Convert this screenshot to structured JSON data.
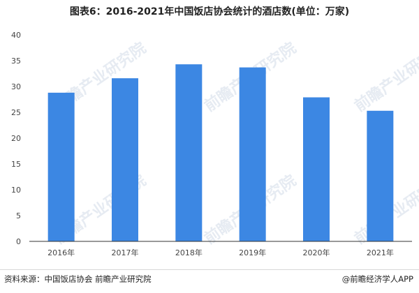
{
  "watermark_text": "前瞻产业研究院",
  "footer": {
    "source": "资料来源：中国饭店协会 前瞻产业研究院",
    "brand": "@前瞻经济学人APP"
  },
  "colors": {
    "bar": "#3c87e3",
    "axis": "#333333"
  },
  "chart_data": {
    "type": "bar",
    "title": "图表6：2016-2021年中国饭店协会统计的酒店数(单位：万家)",
    "xlabel": "",
    "ylabel": "",
    "categories": [
      "2016年",
      "2017年",
      "2018年",
      "2019年",
      "2020年",
      "2021年"
    ],
    "values": [
      28.8,
      31.6,
      34.3,
      33.7,
      27.9,
      25.3
    ],
    "ylim": [
      0,
      40
    ],
    "yticks": [
      0,
      5,
      10,
      15,
      20,
      25,
      30,
      35,
      40
    ],
    "grid": false,
    "legend": "none"
  }
}
